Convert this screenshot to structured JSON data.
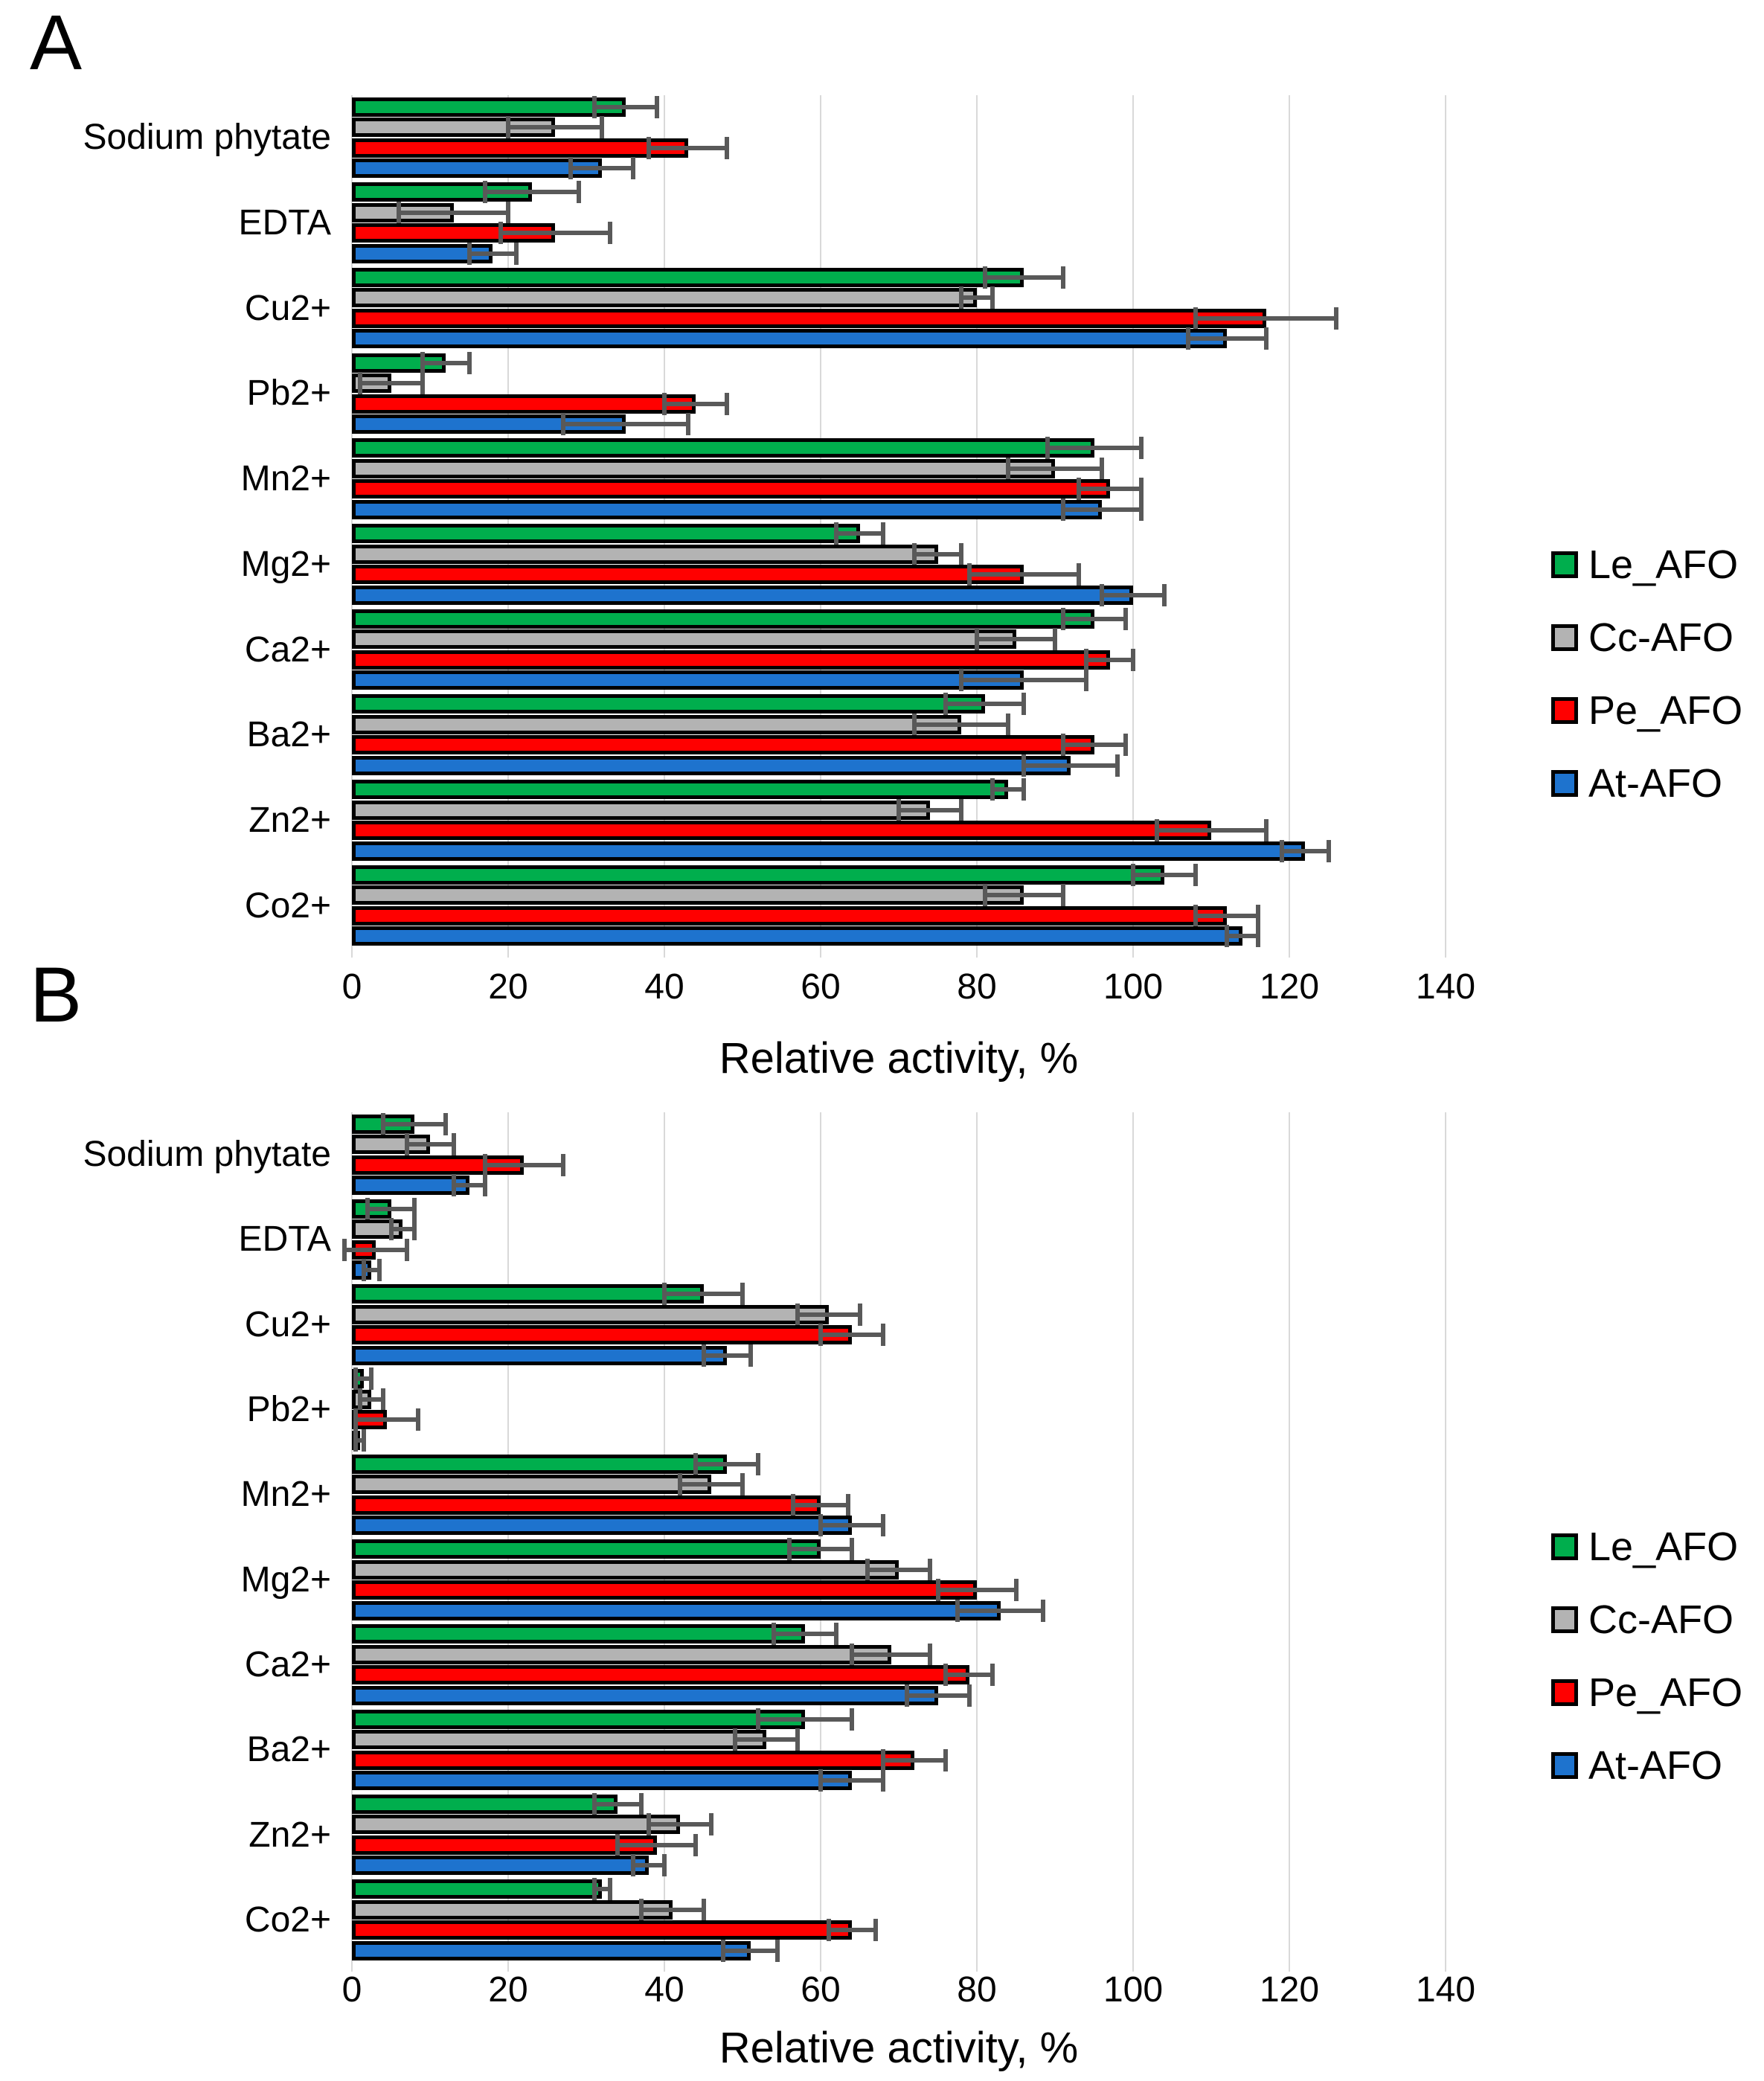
{
  "figure_background": "#ffffff",
  "error_bar_color": "#595959",
  "gridline_color": "#d9d9d9",
  "chart_data": [
    {
      "type": "bar",
      "orientation": "horizontal",
      "panel_label": "A",
      "xlabel": "Relative activity, %",
      "xlim": [
        0,
        140
      ],
      "xticks": [
        0,
        20,
        40,
        60,
        80,
        100,
        120,
        140
      ],
      "grid": true,
      "legend_position": "right",
      "categories": [
        "Sodium phytate",
        "EDTA",
        "Cu2+",
        "Pb2+",
        "Mn2+",
        "Mg2+",
        "Ca2+",
        "Ba2+",
        "Zn2+",
        "Co2+"
      ],
      "series": [
        {
          "name": "Le_AFO",
          "color": "#00AE4D",
          "values": [
            35,
            23,
            86,
            12,
            95,
            65,
            95,
            81,
            84,
            104
          ],
          "errors": [
            4,
            6,
            5,
            3,
            6,
            3,
            4,
            5,
            2,
            4
          ]
        },
        {
          "name": "Cc-AFO",
          "color": "#B3B3B3",
          "values": [
            26,
            13,
            80,
            5,
            90,
            75,
            85,
            78,
            74,
            86
          ],
          "errors": [
            6,
            7,
            2,
            4,
            6,
            3,
            5,
            6,
            4,
            5
          ]
        },
        {
          "name": "Pe_AFO",
          "color": "#FF0000",
          "values": [
            43,
            26,
            117,
            44,
            97,
            86,
            97,
            95,
            110,
            112
          ],
          "errors": [
            5,
            7,
            9,
            4,
            4,
            7,
            3,
            4,
            7,
            4
          ]
        },
        {
          "name": "At-AFO",
          "color": "#1E73CE",
          "values": [
            32,
            18,
            112,
            35,
            96,
            100,
            86,
            92,
            122,
            114
          ],
          "errors": [
            4,
            3,
            5,
            8,
            5,
            4,
            8,
            6,
            3,
            2
          ]
        }
      ]
    },
    {
      "type": "bar",
      "orientation": "horizontal",
      "panel_label": "B",
      "xlabel": "Relative activity, %",
      "xlim": [
        0,
        140
      ],
      "xticks": [
        0,
        20,
        40,
        60,
        80,
        100,
        120,
        140
      ],
      "grid": true,
      "legend_position": "right",
      "categories": [
        "Sodium phytate",
        "EDTA",
        "Cu2+",
        "Pb2+",
        "Mn2+",
        "Mg2+",
        "Ca2+",
        "Ba2+",
        "Zn2+",
        "Co2+"
      ],
      "series": [
        {
          "name": "Le_AFO",
          "color": "#00AE4D",
          "values": [
            8,
            5,
            45,
            1.5,
            48,
            60,
            58,
            58,
            34,
            32
          ],
          "errors": [
            4,
            3,
            5,
            1,
            4,
            4,
            4,
            6,
            3,
            1
          ]
        },
        {
          "name": "Cc-AFO",
          "color": "#B3B3B3",
          "values": [
            10,
            6.5,
            61,
            2.5,
            46,
            70,
            69,
            53,
            42,
            41
          ],
          "errors": [
            3,
            1.5,
            4,
            1.5,
            4,
            4,
            5,
            4,
            4,
            4
          ]
        },
        {
          "name": "Pe_AFO",
          "color": "#FF0000",
          "values": [
            22,
            3,
            64,
            4.5,
            60,
            80,
            79,
            72,
            39,
            64
          ],
          "errors": [
            5,
            4,
            4,
            4,
            3.5,
            5,
            3,
            4,
            5,
            3
          ]
        },
        {
          "name": "At-AFO",
          "color": "#1E73CE",
          "values": [
            15,
            2.5,
            48,
            1,
            64,
            83,
            75,
            64,
            38,
            51
          ],
          "errors": [
            2,
            1,
            3,
            0.5,
            4,
            5.5,
            4,
            4,
            2,
            3.5
          ]
        }
      ]
    }
  ]
}
